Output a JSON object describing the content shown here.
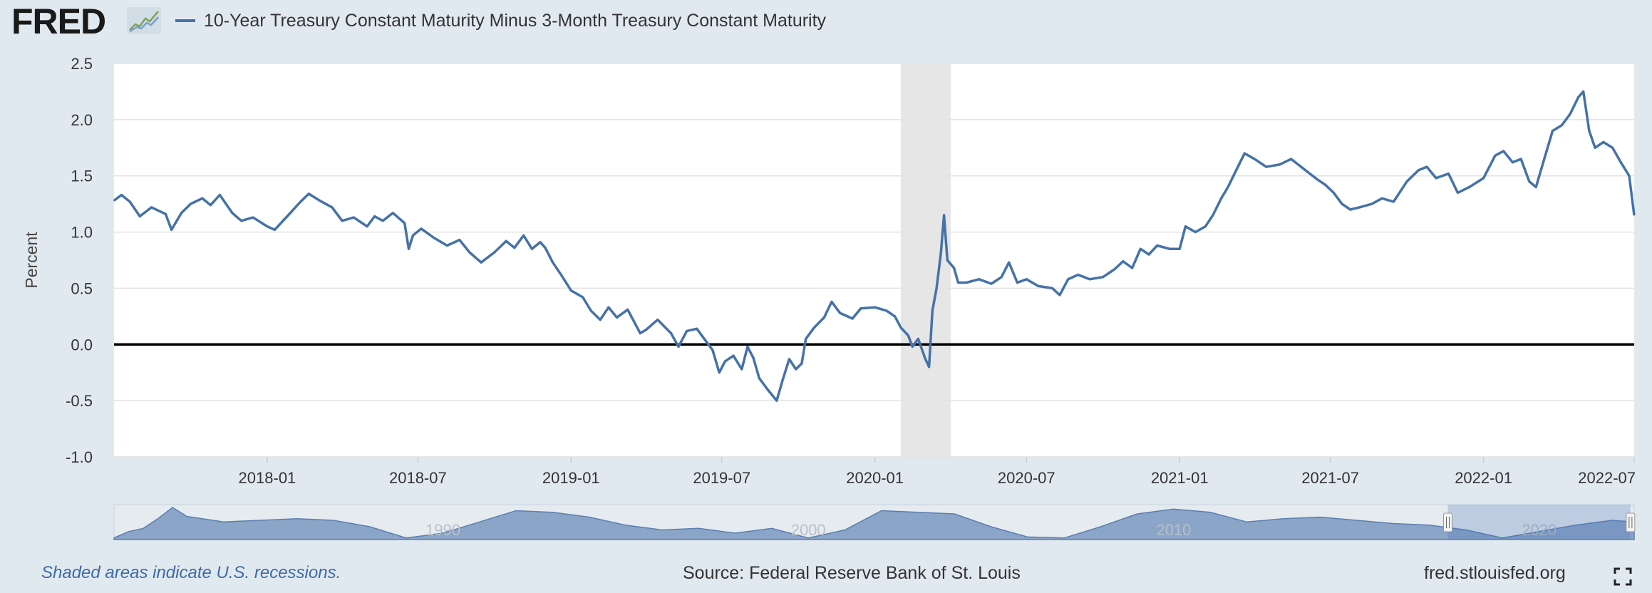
{
  "header": {
    "logo_text": "FRED",
    "logo_icon": "line-chart-icon",
    "legend_label": "10-Year Treasury Constant Maturity Minus 3-Month Treasury Constant Maturity"
  },
  "colors": {
    "series": "#4572a7",
    "recession": "#e6e6e6",
    "background": "#e1e9f0",
    "zero_line": "#000000",
    "navigator": "#8aa5c7"
  },
  "chart_data": {
    "type": "line",
    "ylabel": "Percent",
    "ylim": [
      -1.0,
      2.5
    ],
    "yticks": [
      "2.5",
      "2.0",
      "1.5",
      "1.0",
      "0.5",
      "0.0",
      "-0.5",
      "-1.0"
    ],
    "ytick_values": [
      2.5,
      2.0,
      1.5,
      1.0,
      0.5,
      0.0,
      -0.5,
      -1.0
    ],
    "xlim": [
      "2017-07-01",
      "2022-07-01"
    ],
    "xticks": [
      "2018-01",
      "2018-07",
      "2019-01",
      "2019-07",
      "2020-01",
      "2020-07",
      "2021-01",
      "2021-07",
      "2022-01",
      "2022-07"
    ],
    "xtick_dates": [
      "2018-01-01",
      "2018-07-01",
      "2019-01-01",
      "2019-07-01",
      "2020-01-01",
      "2020-07-01",
      "2021-01-01",
      "2021-07-01",
      "2022-01-01",
      "2022-07-01"
    ],
    "reference_line": 0.0,
    "recession": {
      "start": "2020-02-01",
      "end": "2020-04-01"
    },
    "grid": true,
    "series": [
      {
        "name": "10-Year Treasury Constant Maturity Minus 3-Month Treasury Constant Maturity",
        "points": [
          [
            "2017-07-01",
            1.28
          ],
          [
            "2017-07-10",
            1.33
          ],
          [
            "2017-07-20",
            1.27
          ],
          [
            "2017-08-01",
            1.14
          ],
          [
            "2017-08-15",
            1.22
          ],
          [
            "2017-09-01",
            1.16
          ],
          [
            "2017-09-08",
            1.02
          ],
          [
            "2017-09-20",
            1.17
          ],
          [
            "2017-10-01",
            1.25
          ],
          [
            "2017-10-15",
            1.3
          ],
          [
            "2017-10-25",
            1.24
          ],
          [
            "2017-11-05",
            1.33
          ],
          [
            "2017-11-20",
            1.17
          ],
          [
            "2017-12-01",
            1.1
          ],
          [
            "2017-12-15",
            1.13
          ],
          [
            "2018-01-01",
            1.05
          ],
          [
            "2018-01-10",
            1.02
          ],
          [
            "2018-01-25",
            1.14
          ],
          [
            "2018-02-10",
            1.27
          ],
          [
            "2018-02-20",
            1.34
          ],
          [
            "2018-03-05",
            1.28
          ],
          [
            "2018-03-20",
            1.22
          ],
          [
            "2018-04-01",
            1.1
          ],
          [
            "2018-04-15",
            1.13
          ],
          [
            "2018-05-01",
            1.05
          ],
          [
            "2018-05-10",
            1.14
          ],
          [
            "2018-05-20",
            1.1
          ],
          [
            "2018-06-01",
            1.17
          ],
          [
            "2018-06-15",
            1.08
          ],
          [
            "2018-06-20",
            0.85
          ],
          [
            "2018-06-25",
            0.97
          ],
          [
            "2018-07-05",
            1.03
          ],
          [
            "2018-07-20",
            0.95
          ],
          [
            "2018-08-05",
            0.88
          ],
          [
            "2018-08-20",
            0.93
          ],
          [
            "2018-09-01",
            0.82
          ],
          [
            "2018-09-15",
            0.73
          ],
          [
            "2018-10-01",
            0.82
          ],
          [
            "2018-10-15",
            0.92
          ],
          [
            "2018-10-25",
            0.86
          ],
          [
            "2018-11-05",
            0.97
          ],
          [
            "2018-11-15",
            0.85
          ],
          [
            "2018-11-25",
            0.91
          ],
          [
            "2018-12-01",
            0.86
          ],
          [
            "2018-12-10",
            0.73
          ],
          [
            "2018-12-20",
            0.62
          ],
          [
            "2019-01-01",
            0.48
          ],
          [
            "2019-01-15",
            0.42
          ],
          [
            "2019-01-25",
            0.3
          ],
          [
            "2019-02-05",
            0.22
          ],
          [
            "2019-02-15",
            0.33
          ],
          [
            "2019-02-25",
            0.24
          ],
          [
            "2019-03-10",
            0.31
          ],
          [
            "2019-03-25",
            0.1
          ],
          [
            "2019-04-01",
            0.13
          ],
          [
            "2019-04-15",
            0.22
          ],
          [
            "2019-05-01",
            0.1
          ],
          [
            "2019-05-10",
            -0.02
          ],
          [
            "2019-05-20",
            0.12
          ],
          [
            "2019-06-01",
            0.14
          ],
          [
            "2019-06-10",
            0.05
          ],
          [
            "2019-06-20",
            -0.05
          ],
          [
            "2019-06-28",
            -0.25
          ],
          [
            "2019-07-05",
            -0.15
          ],
          [
            "2019-07-15",
            -0.1
          ],
          [
            "2019-07-25",
            -0.22
          ],
          [
            "2019-08-01",
            -0.02
          ],
          [
            "2019-08-08",
            -0.12
          ],
          [
            "2019-08-15",
            -0.3
          ],
          [
            "2019-08-25",
            -0.4
          ],
          [
            "2019-09-05",
            -0.5
          ],
          [
            "2019-09-12",
            -0.32
          ],
          [
            "2019-09-20",
            -0.13
          ],
          [
            "2019-09-28",
            -0.22
          ],
          [
            "2019-10-05",
            -0.17
          ],
          [
            "2019-10-10",
            0.05
          ],
          [
            "2019-10-20",
            0.15
          ],
          [
            "2019-11-01",
            0.24
          ],
          [
            "2019-11-10",
            0.38
          ],
          [
            "2019-11-20",
            0.28
          ],
          [
            "2019-12-05",
            0.23
          ],
          [
            "2019-12-15",
            0.32
          ],
          [
            "2020-01-01",
            0.33
          ],
          [
            "2020-01-15",
            0.3
          ],
          [
            "2020-01-25",
            0.25
          ],
          [
            "2020-02-01",
            0.15
          ],
          [
            "2020-02-10",
            0.08
          ],
          [
            "2020-02-15",
            -0.02
          ],
          [
            "2020-02-22",
            0.05
          ],
          [
            "2020-03-01",
            -0.12
          ],
          [
            "2020-03-06",
            -0.2
          ],
          [
            "2020-03-10",
            0.3
          ],
          [
            "2020-03-15",
            0.5
          ],
          [
            "2020-03-20",
            0.8
          ],
          [
            "2020-03-24",
            1.15
          ],
          [
            "2020-03-28",
            0.75
          ],
          [
            "2020-04-05",
            0.68
          ],
          [
            "2020-04-10",
            0.55
          ],
          [
            "2020-04-20",
            0.55
          ],
          [
            "2020-05-05",
            0.58
          ],
          [
            "2020-05-20",
            0.54
          ],
          [
            "2020-06-01",
            0.6
          ],
          [
            "2020-06-10",
            0.73
          ],
          [
            "2020-06-20",
            0.55
          ],
          [
            "2020-07-01",
            0.58
          ],
          [
            "2020-07-15",
            0.52
          ],
          [
            "2020-08-01",
            0.5
          ],
          [
            "2020-08-10",
            0.44
          ],
          [
            "2020-08-20",
            0.58
          ],
          [
            "2020-09-01",
            0.62
          ],
          [
            "2020-09-15",
            0.58
          ],
          [
            "2020-10-01",
            0.6
          ],
          [
            "2020-10-15",
            0.67
          ],
          [
            "2020-10-25",
            0.74
          ],
          [
            "2020-11-05",
            0.68
          ],
          [
            "2020-11-15",
            0.85
          ],
          [
            "2020-11-25",
            0.8
          ],
          [
            "2020-12-05",
            0.88
          ],
          [
            "2020-12-20",
            0.85
          ],
          [
            "2021-01-01",
            0.85
          ],
          [
            "2021-01-08",
            1.05
          ],
          [
            "2021-01-20",
            1.0
          ],
          [
            "2021-02-01",
            1.05
          ],
          [
            "2021-02-10",
            1.15
          ],
          [
            "2021-02-20",
            1.3
          ],
          [
            "2021-02-28",
            1.4
          ],
          [
            "2021-03-10",
            1.55
          ],
          [
            "2021-03-20",
            1.7
          ],
          [
            "2021-04-01",
            1.65
          ],
          [
            "2021-04-15",
            1.58
          ],
          [
            "2021-05-01",
            1.6
          ],
          [
            "2021-05-15",
            1.65
          ],
          [
            "2021-06-01",
            1.55
          ],
          [
            "2021-06-15",
            1.47
          ],
          [
            "2021-06-25",
            1.42
          ],
          [
            "2021-07-05",
            1.35
          ],
          [
            "2021-07-15",
            1.25
          ],
          [
            "2021-07-25",
            1.2
          ],
          [
            "2021-08-05",
            1.22
          ],
          [
            "2021-08-20",
            1.25
          ],
          [
            "2021-09-01",
            1.3
          ],
          [
            "2021-09-15",
            1.27
          ],
          [
            "2021-10-01",
            1.45
          ],
          [
            "2021-10-15",
            1.55
          ],
          [
            "2021-10-25",
            1.58
          ],
          [
            "2021-11-05",
            1.48
          ],
          [
            "2021-11-20",
            1.52
          ],
          [
            "2021-12-01",
            1.35
          ],
          [
            "2021-12-15",
            1.4
          ],
          [
            "2022-01-01",
            1.48
          ],
          [
            "2022-01-15",
            1.68
          ],
          [
            "2022-01-25",
            1.72
          ],
          [
            "2022-02-05",
            1.62
          ],
          [
            "2022-02-15",
            1.65
          ],
          [
            "2022-02-25",
            1.45
          ],
          [
            "2022-03-05",
            1.4
          ],
          [
            "2022-03-15",
            1.65
          ],
          [
            "2022-03-25",
            1.9
          ],
          [
            "2022-04-05",
            1.95
          ],
          [
            "2022-04-15",
            2.05
          ],
          [
            "2022-04-25",
            2.2
          ],
          [
            "2022-05-01",
            2.25
          ],
          [
            "2022-05-08",
            1.9
          ],
          [
            "2022-05-15",
            1.75
          ],
          [
            "2022-05-25",
            1.8
          ],
          [
            "2022-06-05",
            1.75
          ],
          [
            "2022-06-15",
            1.62
          ],
          [
            "2022-06-25",
            1.5
          ],
          [
            "2022-07-01",
            1.15
          ]
        ]
      }
    ]
  },
  "navigator": {
    "labels": [
      "1990",
      "2000",
      "2010",
      "2020"
    ],
    "label_years": [
      1990,
      2000,
      2010,
      2020
    ],
    "range": [
      1981,
      2022.6
    ],
    "selected": [
      2017.5,
      2022.5
    ],
    "area": [
      [
        1981.0,
        0.05
      ],
      [
        1981.4,
        0.25
      ],
      [
        1981.8,
        0.35
      ],
      [
        1982.2,
        0.65
      ],
      [
        1982.6,
        1.0
      ],
      [
        1983.0,
        0.72
      ],
      [
        1984.0,
        0.55
      ],
      [
        1985.0,
        0.6
      ],
      [
        1986.0,
        0.65
      ],
      [
        1987.0,
        0.6
      ],
      [
        1988.0,
        0.4
      ],
      [
        1989.0,
        0.05
      ],
      [
        1990.0,
        0.2
      ],
      [
        1991.0,
        0.55
      ],
      [
        1992.0,
        0.9
      ],
      [
        1993.0,
        0.85
      ],
      [
        1994.0,
        0.7
      ],
      [
        1995.0,
        0.45
      ],
      [
        1996.0,
        0.3
      ],
      [
        1997.0,
        0.35
      ],
      [
        1998.0,
        0.2
      ],
      [
        1999.0,
        0.35
      ],
      [
        2000.0,
        0.05
      ],
      [
        2001.0,
        0.3
      ],
      [
        2002.0,
        0.9
      ],
      [
        2003.0,
        0.85
      ],
      [
        2004.0,
        0.8
      ],
      [
        2005.0,
        0.4
      ],
      [
        2006.0,
        0.08
      ],
      [
        2007.0,
        0.05
      ],
      [
        2008.0,
        0.4
      ],
      [
        2009.0,
        0.8
      ],
      [
        2010.0,
        0.95
      ],
      [
        2011.0,
        0.85
      ],
      [
        2012.0,
        0.55
      ],
      [
        2013.0,
        0.65
      ],
      [
        2014.0,
        0.7
      ],
      [
        2015.0,
        0.6
      ],
      [
        2016.0,
        0.5
      ],
      [
        2017.0,
        0.45
      ],
      [
        2018.0,
        0.3
      ],
      [
        2019.0,
        0.05
      ],
      [
        2020.0,
        0.25
      ],
      [
        2021.0,
        0.45
      ],
      [
        2022.0,
        0.6
      ],
      [
        2022.6,
        0.55
      ]
    ]
  },
  "footer": {
    "recession_note": "Shaded areas indicate U.S. recessions.",
    "source": "Source: Federal Reserve Bank of St. Louis",
    "site": "fred.stlouisfed.org",
    "fullscreen_icon": "fullscreen-icon"
  }
}
